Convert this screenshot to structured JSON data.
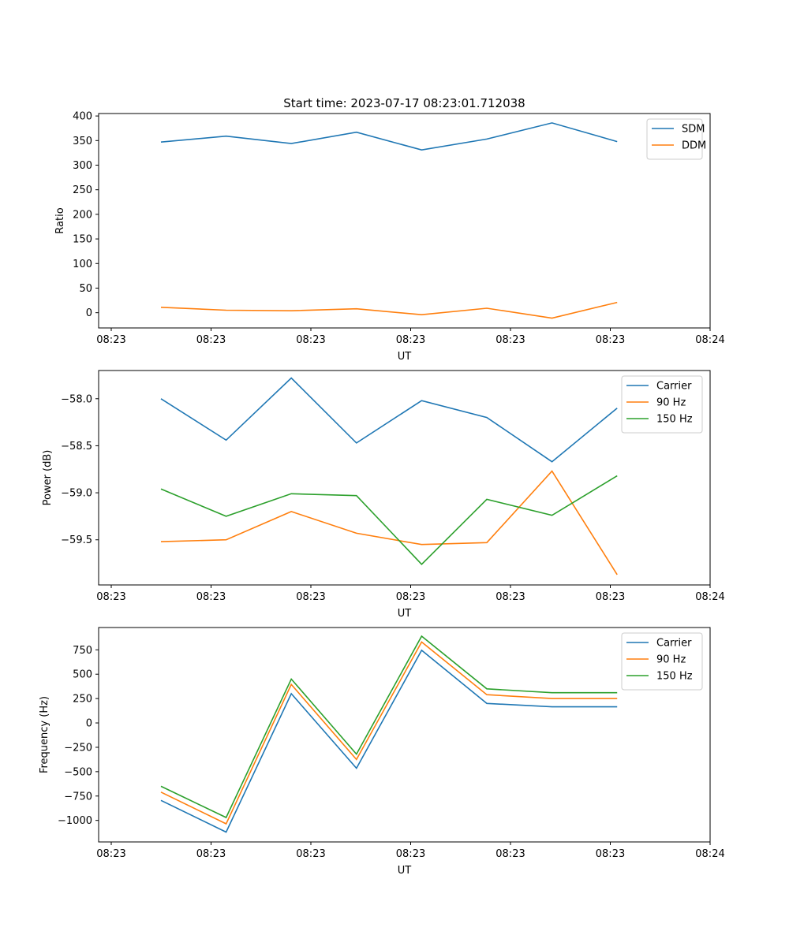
{
  "figure_title": "Start time: 2023-07-17 08:23:01.712038",
  "chart_data": [
    {
      "type": "line",
      "xlabel": "UT",
      "ylabel": "Ratio",
      "x_tick_labels": [
        "08:23",
        "08:23",
        "08:23",
        "08:23",
        "08:23",
        "08:23",
        "08:24"
      ],
      "ylim": [
        -31,
        405
      ],
      "y_ticks": [
        0,
        50,
        100,
        150,
        200,
        250,
        300,
        350,
        400
      ],
      "y_tick_labels": [
        "0",
        "50",
        "100",
        "150",
        "200",
        "250",
        "300",
        "350",
        "400"
      ],
      "legend_position": "top-right",
      "series": [
        {
          "name": "SDM",
          "color": "#1f77b4",
          "values": [
            347,
            359,
            344,
            367,
            331,
            353,
            386,
            348
          ]
        },
        {
          "name": "DDM",
          "color": "#ff7f0e",
          "values": [
            11,
            5,
            4,
            8,
            -4,
            9,
            -11,
            21
          ]
        }
      ]
    },
    {
      "type": "line",
      "xlabel": "UT",
      "ylabel": "Power (dB)",
      "x_tick_labels": [
        "08:23",
        "08:23",
        "08:23",
        "08:23",
        "08:23",
        "08:23",
        "08:24"
      ],
      "ylim": [
        -59.98,
        -57.7
      ],
      "y_ticks": [
        -58.0,
        -58.5,
        -59.0,
        -59.5
      ],
      "y_tick_labels": [
        "−58.0",
        "−58.5",
        "−59.0",
        "−59.5"
      ],
      "legend_position": "top-right",
      "series": [
        {
          "name": "Carrier",
          "color": "#1f77b4",
          "values": [
            -58.0,
            -58.44,
            -57.78,
            -58.47,
            -58.02,
            -58.2,
            -58.67,
            -58.1
          ]
        },
        {
          "name": "90 Hz",
          "color": "#ff7f0e",
          "values": [
            -59.52,
            -59.5,
            -59.2,
            -59.43,
            -59.55,
            -59.53,
            -58.77,
            -59.87
          ]
        },
        {
          "name": "150 Hz",
          "color": "#2ca02c",
          "values": [
            -58.96,
            -59.25,
            -59.01,
            -59.03,
            -59.76,
            -59.07,
            -59.24,
            -58.82
          ]
        }
      ]
    },
    {
      "type": "line",
      "xlabel": "UT",
      "ylabel": "Frequency (Hz)",
      "x_tick_labels": [
        "08:23",
        "08:23",
        "08:23",
        "08:23",
        "08:23",
        "08:23",
        "08:24"
      ],
      "ylim": [
        -1221,
        979
      ],
      "y_ticks": [
        750,
        500,
        250,
        0,
        -250,
        -500,
        -750,
        -1000
      ],
      "y_tick_labels": [
        "750",
        "500",
        "250",
        "0",
        "−250",
        "−500",
        "−750",
        "−1000"
      ],
      "legend_position": "top-right",
      "series": [
        {
          "name": "Carrier",
          "color": "#1f77b4",
          "values": [
            -795,
            -1120,
            300,
            -465,
            745,
            200,
            165,
            165
          ]
        },
        {
          "name": "90 Hz",
          "color": "#ff7f0e",
          "values": [
            -710,
            -1035,
            395,
            -375,
            830,
            290,
            250,
            250
          ]
        },
        {
          "name": "150 Hz",
          "color": "#2ca02c",
          "values": [
            -650,
            -970,
            450,
            -320,
            890,
            350,
            310,
            310
          ]
        }
      ]
    }
  ]
}
